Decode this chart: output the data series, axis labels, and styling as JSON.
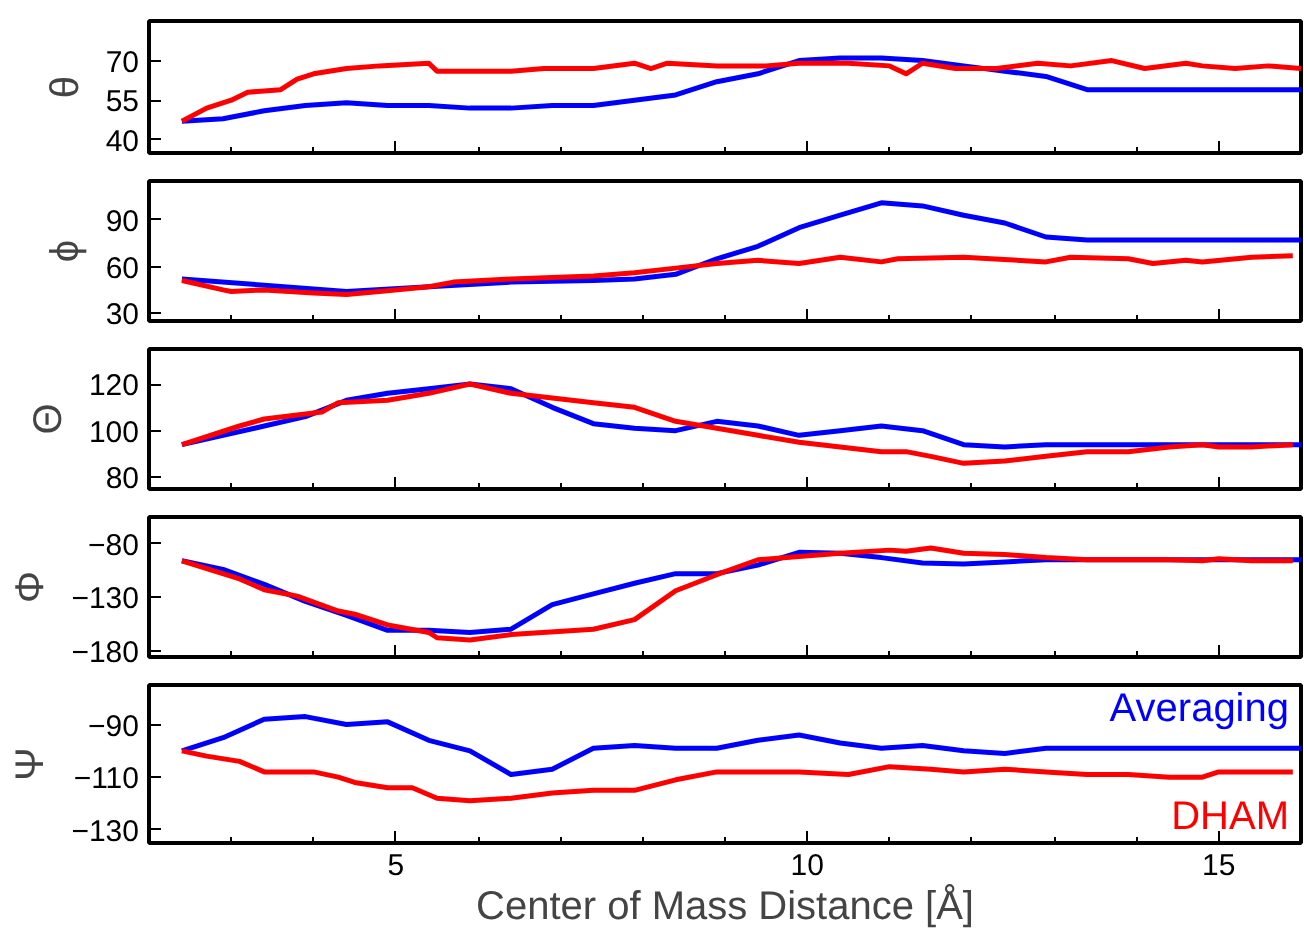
{
  "chart_data": [
    {
      "type": "line",
      "ylabel": "θ",
      "xlim": [
        2,
        16
      ],
      "ylim": [
        35,
        85
      ],
      "yticks": [
        40,
        55,
        70
      ],
      "xticks": [
        {
          "value": 3,
          "label": null
        },
        {
          "value": 4,
          "label": null
        },
        5,
        {
          "value": 6,
          "label": null
        },
        {
          "value": 7,
          "label": null
        },
        {
          "value": 8,
          "label": null
        },
        {
          "value": 9,
          "label": null
        },
        10,
        {
          "value": 11,
          "label": null
        },
        {
          "value": 12,
          "label": null
        },
        {
          "value": 13,
          "label": null
        },
        {
          "value": 14,
          "label": null
        },
        15
      ],
      "tick_labels": "y",
      "grid": false,
      "legend": false,
      "series": [
        {
          "color": "#0000ff",
          "x": [
            2.4,
            2.9,
            3.4,
            3.9,
            4.4,
            4.9,
            5.4,
            5.9,
            6.4,
            6.9,
            7.4,
            7.9,
            8.4,
            8.9,
            9.4,
            9.9,
            10.4,
            10.9,
            11.4,
            11.9,
            12.4,
            12.9,
            13.4,
            16
          ],
          "values": [
            47,
            48,
            51,
            53,
            54,
            53,
            53,
            52,
            52,
            53,
            53,
            55,
            57,
            62,
            65,
            70,
            71,
            71,
            70,
            68,
            66,
            64,
            59,
            59
          ]
        },
        {
          "color": "#ff0000",
          "x": [
            2.4,
            2.7,
            3.0,
            3.2,
            3.6,
            3.8,
            4.0,
            4.4,
            4.8,
            5.4,
            5.5,
            6.0,
            6.4,
            6.8,
            7.4,
            7.9,
            8.1,
            8.3,
            8.9,
            9.5,
            9.9,
            10.5,
            11.0,
            11.2,
            11.4,
            11.8,
            12.3,
            12.8,
            13.2,
            13.7,
            14.1,
            14.6,
            14.8,
            15.2,
            15.6,
            16
          ],
          "values": [
            47,
            52,
            55,
            58,
            59,
            63,
            65,
            67,
            68,
            69,
            66,
            66,
            66,
            67,
            67,
            69,
            67,
            69,
            68,
            68,
            69,
            69,
            68,
            65,
            69,
            67,
            67,
            69,
            68,
            70,
            67,
            69,
            68,
            67,
            68,
            67
          ]
        }
      ]
    },
    {
      "type": "line",
      "ylabel": "ϕ",
      "xlim": [
        2,
        16
      ],
      "ylim": [
        25,
        115
      ],
      "yticks": [
        30,
        60,
        90
      ],
      "xticks": [
        {
          "value": 3,
          "label": null
        },
        {
          "value": 4,
          "label": null
        },
        5,
        {
          "value": 6,
          "label": null
        },
        {
          "value": 7,
          "label": null
        },
        {
          "value": 8,
          "label": null
        },
        {
          "value": 9,
          "label": null
        },
        10,
        {
          "value": 11,
          "label": null
        },
        {
          "value": 12,
          "label": null
        },
        {
          "value": 13,
          "label": null
        },
        {
          "value": 14,
          "label": null
        },
        15
      ],
      "tick_labels": "y",
      "grid": false,
      "legend": false,
      "series": [
        {
          "color": "#0000ff",
          "x": [
            2.4,
            3.4,
            4.4,
            5.4,
            6.4,
            7.4,
            7.9,
            8.4,
            8.9,
            9.4,
            9.9,
            10.4,
            10.9,
            11.4,
            11.9,
            12.4,
            12.9,
            13.4,
            16
          ],
          "values": [
            52,
            48,
            44,
            47,
            50,
            51,
            52,
            55,
            65,
            73,
            85,
            93,
            101,
            99,
            93,
            88,
            79,
            77,
            77
          ]
        },
        {
          "color": "#ff0000",
          "x": [
            2.4,
            2.9,
            3.0,
            3.4,
            4.0,
            4.4,
            4.8,
            5.4,
            5.7,
            6.4,
            7.4,
            7.9,
            8.4,
            8.9,
            9.4,
            9.9,
            10.4,
            10.9,
            11.1,
            11.9,
            12.9,
            13.2,
            13.9,
            14.2,
            14.6,
            14.8,
            15.4,
            15.9
          ],
          "values": [
            51,
            45,
            44,
            45,
            43,
            42,
            44,
            47,
            50,
            52,
            54,
            56,
            59,
            62,
            64,
            62,
            66,
            63,
            65,
            66,
            63,
            66,
            65,
            62,
            64,
            63,
            66,
            67
          ]
        }
      ]
    },
    {
      "type": "line",
      "ylabel": "Θ",
      "xlim": [
        2,
        16
      ],
      "ylim": [
        75,
        135
      ],
      "yticks": [
        80,
        100,
        120
      ],
      "xticks": [
        {
          "value": 3,
          "label": null
        },
        {
          "value": 4,
          "label": null
        },
        5,
        {
          "value": 6,
          "label": null
        },
        {
          "value": 7,
          "label": null
        },
        {
          "value": 8,
          "label": null
        },
        {
          "value": 9,
          "label": null
        },
        10,
        {
          "value": 11,
          "label": null
        },
        {
          "value": 12,
          "label": null
        },
        {
          "value": 13,
          "label": null
        },
        {
          "value": 14,
          "label": null
        },
        15
      ],
      "tick_labels": "y",
      "grid": false,
      "legend": false,
      "series": [
        {
          "color": "#0000ff",
          "x": [
            2.4,
            3.4,
            3.9,
            4.4,
            4.9,
            5.4,
            5.9,
            6.4,
            6.9,
            7.4,
            7.9,
            8.4,
            8.9,
            9.4,
            9.9,
            10.4,
            10.9,
            11.4,
            11.9,
            12.4,
            12.9,
            16
          ],
          "values": [
            94,
            102,
            106,
            113,
            116,
            118,
            120,
            118,
            110,
            103,
            101,
            100,
            104,
            102,
            98,
            100,
            102,
            100,
            94,
            93,
            94,
            94
          ]
        },
        {
          "color": "#ff0000",
          "x": [
            2.4,
            3.1,
            3.4,
            4.1,
            4.3,
            4.9,
            5.4,
            5.9,
            6.4,
            6.9,
            7.4,
            7.9,
            8.4,
            8.9,
            9.4,
            9.9,
            10.4,
            10.9,
            11.2,
            11.5,
            11.9,
            12.4,
            12.9,
            13.4,
            13.9,
            14.4,
            14.8,
            15.0,
            15.4,
            15.9
          ],
          "values": [
            94,
            102,
            105,
            108,
            112,
            113,
            116,
            120,
            116,
            114,
            112,
            110,
            104,
            101,
            98,
            95,
            93,
            91,
            91,
            89,
            86,
            87,
            89,
            91,
            91,
            93,
            94,
            93,
            93,
            94
          ]
        }
      ]
    },
    {
      "type": "line",
      "ylabel": "Φ",
      "xlim": [
        2,
        16
      ],
      "ylim": [
        -186,
        -55
      ],
      "yticks": [
        {
          "value": -180,
          "label": "−180"
        },
        {
          "value": -130,
          "label": "−130"
        },
        {
          "value": -80,
          "label": "−80"
        }
      ],
      "xticks": [
        {
          "value": 3,
          "label": null
        },
        {
          "value": 4,
          "label": null
        },
        5,
        {
          "value": 6,
          "label": null
        },
        {
          "value": 7,
          "label": null
        },
        {
          "value": 8,
          "label": null
        },
        {
          "value": 9,
          "label": null
        },
        10,
        {
          "value": 11,
          "label": null
        },
        {
          "value": 12,
          "label": null
        },
        {
          "value": 13,
          "label": null
        },
        {
          "value": 14,
          "label": null
        },
        15
      ],
      "tick_labels": "y",
      "grid": false,
      "legend": false,
      "series": [
        {
          "color": "#0000ff",
          "x": [
            2.4,
            2.9,
            3.4,
            3.9,
            4.4,
            4.9,
            5.4,
            5.9,
            6.4,
            6.9,
            7.4,
            7.9,
            8.4,
            8.9,
            9.4,
            9.9,
            10.4,
            10.9,
            11.4,
            11.9,
            12.4,
            12.9,
            16
          ],
          "values": [
            -96,
            -104,
            -118,
            -134,
            -147,
            -161,
            -161,
            -163,
            -160,
            -137,
            -127,
            -117,
            -108,
            -108,
            -100,
            -88,
            -89,
            -93,
            -98,
            -99,
            -97,
            -95,
            -95
          ]
        },
        {
          "color": "#ff0000",
          "x": [
            2.4,
            3.1,
            3.4,
            3.8,
            4.3,
            4.5,
            4.9,
            5.4,
            5.5,
            5.9,
            6.4,
            7.4,
            7.9,
            8.4,
            8.9,
            9.4,
            9.9,
            10.4,
            11.0,
            11.2,
            11.5,
            11.9,
            12.4,
            12.9,
            13.4,
            14.4,
            14.8,
            15.0,
            15.4,
            15.9
          ],
          "values": [
            -96,
            -113,
            -123,
            -129,
            -143,
            -146,
            -156,
            -163,
            -168,
            -170,
            -165,
            -160,
            -151,
            -124,
            -109,
            -95,
            -92,
            -89,
            -86,
            -87,
            -84,
            -89,
            -90,
            -93,
            -95,
            -95,
            -96,
            -94,
            -96,
            -96
          ]
        }
      ]
    },
    {
      "type": "line",
      "ylabel": "Ψ",
      "xlabel": "Center of Mass Distance [Å]",
      "xlim": [
        2,
        16
      ],
      "ylim": [
        -135,
        -75
      ],
      "yticks": [
        {
          "value": -130,
          "label": "−130"
        },
        {
          "value": -110,
          "label": "−110"
        },
        {
          "value": -90,
          "label": "−90"
        }
      ],
      "xticks": [
        {
          "value": 3,
          "label": null
        },
        {
          "value": 4,
          "label": null
        },
        5,
        {
          "value": 6,
          "label": null
        },
        {
          "value": 7,
          "label": null
        },
        {
          "value": 8,
          "label": null
        },
        {
          "value": 9,
          "label": null
        },
        10,
        {
          "value": 11,
          "label": null
        },
        {
          "value": 12,
          "label": null
        },
        {
          "value": 13,
          "label": null
        },
        {
          "value": 14,
          "label": null
        },
        15
      ],
      "grid": false,
      "legend": "right",
      "series": [
        {
          "name": "Averaging",
          "color": "#0000ff",
          "x": [
            2.4,
            2.9,
            3.4,
            3.9,
            4.4,
            4.9,
            5.4,
            5.9,
            6.4,
            6.9,
            7.4,
            7.9,
            8.4,
            8.9,
            9.4,
            9.9,
            10.4,
            10.9,
            11.4,
            11.9,
            12.4,
            12.9,
            13.4,
            16
          ],
          "values": [
            -100,
            -95,
            -88,
            -87,
            -90,
            -89,
            -96,
            -100,
            -109,
            -107,
            -99,
            -98,
            -99,
            -99,
            -96,
            -94,
            -97,
            -99,
            -98,
            -100,
            -101,
            -99,
            -99,
            -99
          ]
        },
        {
          "name": "DHAM",
          "color": "#ff0000",
          "x": [
            2.4,
            2.7,
            3.1,
            3.4,
            4.0,
            4.3,
            4.5,
            4.9,
            5.2,
            5.5,
            5.9,
            6.4,
            6.9,
            7.4,
            7.9,
            8.4,
            8.9,
            9.4,
            9.9,
            10.5,
            11.0,
            11.5,
            11.9,
            12.4,
            12.9,
            13.4,
            13.9,
            14.4,
            14.8,
            15.0,
            15.9
          ],
          "values": [
            -100,
            -102,
            -104,
            -108,
            -108,
            -110,
            -112,
            -114,
            -114,
            -118,
            -119,
            -118,
            -116,
            -115,
            -115,
            -111,
            -108,
            -108,
            -108,
            -109,
            -106,
            -107,
            -108,
            -107,
            -108,
            -109,
            -109,
            -110,
            -110,
            -108,
            -108
          ]
        }
      ]
    }
  ]
}
